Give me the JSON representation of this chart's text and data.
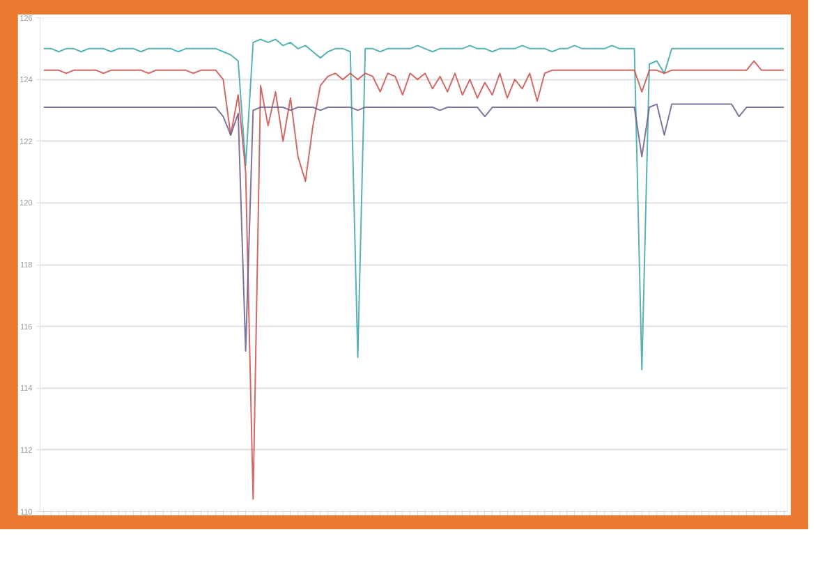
{
  "chart_data": {
    "type": "line",
    "categories": [
      null,
      null,
      null,
      null,
      null,
      null,
      null,
      null,
      null,
      null,
      null,
      null,
      null,
      null,
      null,
      null,
      null,
      null,
      null,
      null,
      null,
      null,
      null,
      null,
      null,
      null,
      null,
      null,
      null,
      null,
      null,
      null,
      null,
      null,
      null,
      null,
      null,
      null,
      null,
      null,
      null,
      null,
      null,
      null,
      null,
      null,
      null,
      null,
      null,
      null,
      null,
      null,
      null,
      null,
      null,
      null,
      null,
      null,
      null,
      null,
      null,
      null,
      null,
      null,
      null,
      null,
      null,
      null,
      null,
      null,
      null,
      null,
      null,
      null,
      null,
      null,
      null,
      null,
      null,
      null,
      null,
      null,
      null,
      null,
      null,
      null,
      null,
      null,
      null,
      null,
      null,
      null,
      null,
      null,
      null,
      null,
      null,
      null,
      null,
      null
    ],
    "series": [
      {
        "color": "#3aa6a6",
        "values": [
          125.0,
          125.0,
          124.9,
          125.0,
          125.0,
          124.9,
          125.0,
          125.0,
          125.0,
          124.9,
          125.0,
          125.0,
          125.0,
          124.9,
          125.0,
          125.0,
          125.0,
          125.0,
          124.9,
          125.0,
          125.0,
          125.0,
          125.0,
          125.0,
          124.9,
          124.8,
          124.6,
          121.2,
          125.2,
          125.3,
          125.2,
          125.3,
          125.1,
          125.2,
          125.0,
          125.1,
          124.9,
          124.7,
          124.9,
          125.0,
          125.0,
          124.9,
          115.0,
          125.0,
          125.0,
          124.9,
          125.0,
          125.0,
          125.0,
          125.0,
          125.1,
          125.0,
          124.9,
          125.0,
          125.0,
          125.0,
          125.0,
          125.1,
          125.0,
          125.0,
          124.9,
          125.0,
          125.0,
          125.0,
          125.1,
          125.0,
          125.0,
          125.0,
          124.9,
          125.0,
          125.0,
          125.1,
          125.0,
          125.0,
          125.0,
          125.0,
          125.1,
          125.0,
          125.0,
          125.0,
          114.6,
          124.5,
          124.6,
          124.2,
          125.0,
          125.0,
          125.0,
          125.0,
          125.0,
          125.0,
          125.0,
          125.0,
          125.0,
          125.0,
          125.0,
          125.0,
          125.0,
          125.0,
          125.0,
          125.0
        ]
      },
      {
        "color": "#c9504c",
        "values": [
          124.3,
          124.3,
          124.3,
          124.2,
          124.3,
          124.3,
          124.3,
          124.3,
          124.2,
          124.3,
          124.3,
          124.3,
          124.3,
          124.3,
          124.2,
          124.3,
          124.3,
          124.3,
          124.3,
          124.3,
          124.2,
          124.3,
          124.3,
          124.3,
          124.0,
          122.2,
          123.5,
          121.0,
          110.4,
          123.8,
          122.5,
          123.6,
          122.0,
          123.4,
          121.5,
          120.7,
          122.5,
          123.8,
          124.1,
          124.2,
          124.0,
          124.2,
          124.0,
          124.2,
          124.1,
          123.6,
          124.2,
          124.1,
          123.5,
          124.2,
          124.0,
          124.2,
          123.7,
          124.1,
          123.6,
          124.2,
          123.5,
          124.0,
          123.4,
          123.9,
          123.5,
          124.2,
          123.4,
          124.0,
          123.7,
          124.2,
          123.3,
          124.2,
          124.3,
          124.3,
          124.3,
          124.3,
          124.3,
          124.3,
          124.3,
          124.3,
          124.3,
          124.3,
          124.3,
          124.3,
          123.6,
          124.3,
          124.3,
          124.2,
          124.3,
          124.3,
          124.3,
          124.3,
          124.3,
          124.3,
          124.3,
          124.3,
          124.3,
          124.3,
          124.3,
          124.6,
          124.3,
          124.3,
          124.3,
          124.3
        ]
      },
      {
        "color": "#6c5a8c",
        "values": [
          123.1,
          123.1,
          123.1,
          123.1,
          123.1,
          123.1,
          123.1,
          123.1,
          123.1,
          123.1,
          123.1,
          123.1,
          123.1,
          123.1,
          123.1,
          123.1,
          123.1,
          123.1,
          123.1,
          123.1,
          123.1,
          123.1,
          123.1,
          123.1,
          122.8,
          122.2,
          122.9,
          115.2,
          123.0,
          123.1,
          123.1,
          123.1,
          123.1,
          123.0,
          123.1,
          123.1,
          123.1,
          123.0,
          123.1,
          123.1,
          123.1,
          123.1,
          123.0,
          123.1,
          123.1,
          123.1,
          123.1,
          123.1,
          123.1,
          123.1,
          123.1,
          123.1,
          123.1,
          123.0,
          123.1,
          123.1,
          123.1,
          123.1,
          123.1,
          122.8,
          123.1,
          123.1,
          123.1,
          123.1,
          123.1,
          123.1,
          123.1,
          123.1,
          123.1,
          123.1,
          123.1,
          123.1,
          123.1,
          123.1,
          123.1,
          123.1,
          123.1,
          123.1,
          123.1,
          123.1,
          121.5,
          123.1,
          123.2,
          122.2,
          123.2,
          123.2,
          123.2,
          123.2,
          123.2,
          123.2,
          123.2,
          123.2,
          123.2,
          122.8,
          123.1,
          123.1,
          123.1,
          123.1,
          123.1,
          123.1
        ]
      }
    ],
    "ylim": [
      110,
      126
    ],
    "yticks": [
      110,
      112,
      114,
      116,
      118,
      120,
      122,
      124,
      126
    ],
    "grid": "y"
  }
}
